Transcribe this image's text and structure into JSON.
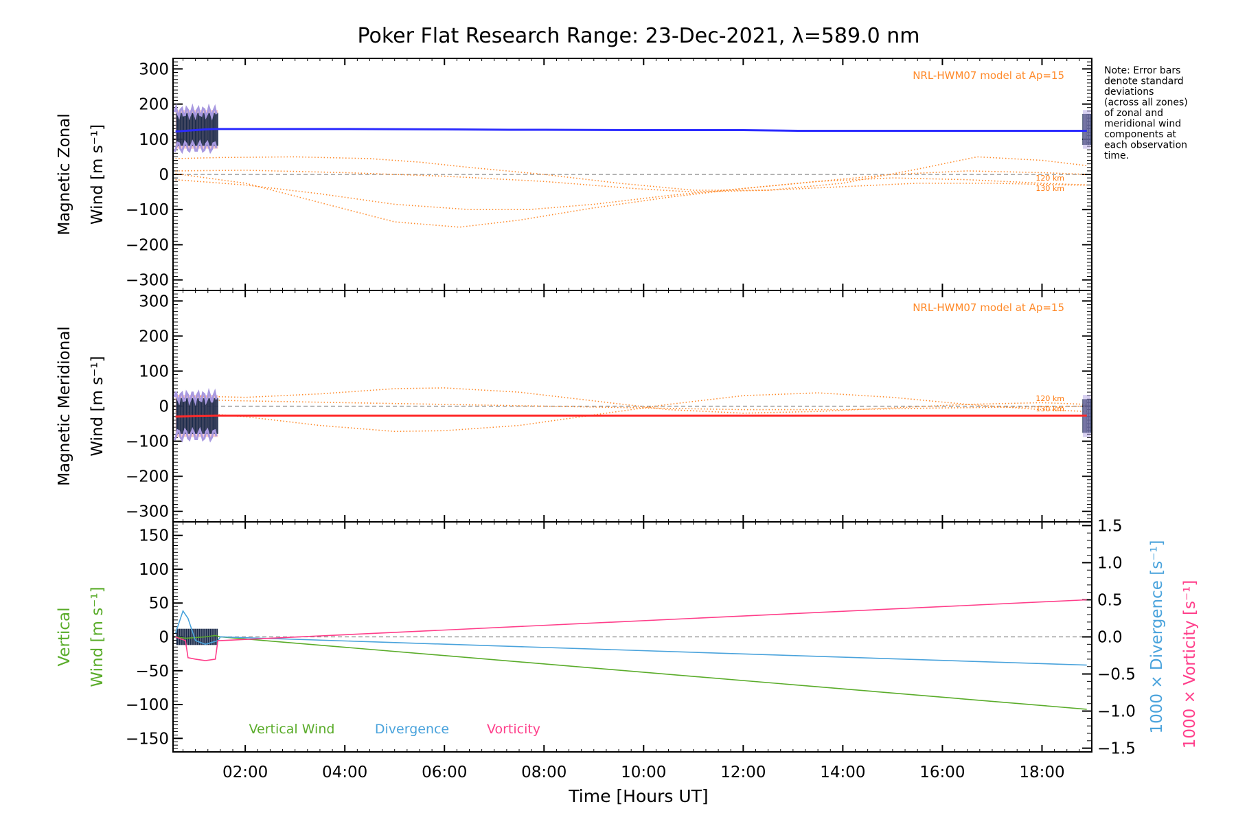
{
  "title": "Poker Flat Research Range: 23-Dec-2021, λ=589.0 nm",
  "note": [
    "Note: Error bars",
    "denote standard",
    "deviations",
    "(across all zones)",
    "of zonal and",
    "meridional wind",
    "components at",
    "each observation",
    "time."
  ],
  "x_label": "Time [Hours UT]",
  "colors": {
    "zonal": "#2b2bff",
    "meridional": "#ff2b2b",
    "model": "#ff8a2a",
    "vertical": "#5aac2a",
    "divergence": "#4aa3dc",
    "vorticity": "#ff3e8a",
    "zero_line": "#888888",
    "error_bar": "#1a2a4a",
    "zone_spread_zonal": "#f4a0a0",
    "zone_spread_lilac": "#a899e0"
  },
  "chart_data": [
    {
      "type": "line",
      "panel": "zonal",
      "ylabel_line1": "Magnetic Zonal",
      "ylabel_line2": "Wind [m s⁻¹]",
      "xlim": [
        0.55,
        19.0
      ],
      "ylim": [
        -330,
        330
      ],
      "x_ticks": [
        2,
        4,
        6,
        8,
        10,
        12,
        14,
        16,
        18
      ],
      "y_ticks": [
        -300,
        -200,
        -100,
        0,
        100,
        200,
        300
      ],
      "model_label": "NRL-HWM07 model at Ap=15",
      "model_levels": [
        "120 km",
        "130 km"
      ],
      "series": [
        {
          "x": [
            0.6,
            0.8,
            1.0,
            1.2,
            1.4,
            2.0,
            4.0,
            6.0,
            7.3,
            8.0,
            10.0,
            12.0,
            13.1,
            14.0,
            16.0,
            18.0,
            18.9
          ],
          "y": [
            122,
            124,
            126,
            128,
            129,
            129,
            129,
            128,
            127,
            127,
            126,
            126,
            124,
            124,
            124,
            124,
            124
          ]
        }
      ],
      "model_curves": [
        {
          "x": [
            0.6,
            1.5,
            3,
            4.5,
            5.5,
            6.5,
            8,
            9.5,
            11,
            12.5,
            14,
            15.5,
            16.7,
            18,
            18.9
          ],
          "y": [
            45,
            48,
            50,
            45,
            35,
            20,
            0,
            -25,
            -45,
            -45,
            -25,
            15,
            50,
            40,
            25
          ]
        },
        {
          "x": [
            0.6,
            2,
            3.5,
            5,
            6.3,
            7.5,
            9,
            10.5,
            12,
            13.5,
            15,
            16.5,
            18,
            18.9
          ],
          "y": [
            2,
            -25,
            -80,
            -135,
            -150,
            -130,
            -95,
            -65,
            -40,
            -20,
            0,
            10,
            5,
            0
          ]
        },
        {
          "x": [
            0.6,
            2,
            3.5,
            5,
            6.5,
            7.7,
            9,
            10.5,
            12,
            13.5,
            15,
            16.5,
            18,
            18.9
          ],
          "y": [
            -15,
            -30,
            -55,
            -85,
            -100,
            -100,
            -85,
            -60,
            -40,
            -20,
            -10,
            -15,
            -25,
            -30
          ]
        },
        {
          "x": [
            0.6,
            2,
            4,
            6,
            8,
            9.8,
            11,
            12.5,
            14,
            15.5,
            17,
            18.5,
            18.9
          ],
          "y": [
            10,
            12,
            5,
            -5,
            -20,
            -40,
            -50,
            -45,
            -35,
            -25,
            -25,
            -30,
            -30
          ]
        }
      ]
    },
    {
      "type": "line",
      "panel": "meridional",
      "ylabel_line1": "Magnetic Meridional",
      "ylabel_line2": "Wind [m s⁻¹]",
      "xlim": [
        0.55,
        19.0
      ],
      "ylim": [
        -330,
        330
      ],
      "x_ticks": [
        2,
        4,
        6,
        8,
        10,
        12,
        14,
        16,
        18
      ],
      "y_ticks": [
        -300,
        -200,
        -100,
        0,
        100,
        200,
        300
      ],
      "model_label": "NRL-HWM07 model at Ap=15",
      "model_levels": [
        "120 km",
        "130 km"
      ],
      "series": [
        {
          "x": [
            0.6,
            1.0,
            1.4,
            2.0,
            6.0,
            10.0,
            14.0,
            18.9
          ],
          "y": [
            -30,
            -28,
            -27,
            -27,
            -27,
            -27,
            -27,
            -27
          ]
        }
      ],
      "model_curves": [
        {
          "x": [
            0.6,
            2,
            3.5,
            5,
            6,
            7.5,
            9,
            10.5,
            12,
            13.5,
            15,
            16.5,
            18,
            18.9
          ],
          "y": [
            30,
            25,
            35,
            50,
            52,
            40,
            15,
            -10,
            -20,
            -15,
            -5,
            5,
            10,
            5
          ]
        },
        {
          "x": [
            0.6,
            2,
            3.5,
            5,
            6,
            7.5,
            9,
            10.5,
            12,
            13.5,
            15,
            16.5,
            18,
            18.9
          ],
          "y": [
            -15,
            -30,
            -55,
            -72,
            -70,
            -55,
            -25,
            5,
            30,
            38,
            25,
            5,
            -10,
            -15
          ]
        },
        {
          "x": [
            0.6,
            2,
            4,
            6,
            8,
            10,
            12,
            14,
            16,
            18,
            18.9
          ],
          "y": [
            20,
            15,
            10,
            5,
            0,
            -5,
            -10,
            -10,
            -5,
            -2,
            0
          ]
        }
      ]
    },
    {
      "type": "line",
      "panel": "vertical",
      "ylabel_line1": "Vertical",
      "ylabel_line2": "Wind [m s⁻¹]",
      "right_label_1": "1000 × Divergence [s⁻¹]",
      "right_label_2": "1000 × Vorticity [s⁻¹]",
      "xlim": [
        0.55,
        19.0
      ],
      "ylim": [
        -170,
        170
      ],
      "y2lim": [
        -1.55,
        1.55
      ],
      "x_ticks": [
        2,
        4,
        6,
        8,
        10,
        12,
        14,
        16,
        18
      ],
      "x_tick_labels": [
        "02:00",
        "04:00",
        "06:00",
        "08:00",
        "10:00",
        "12:00",
        "14:00",
        "16:00",
        "18:00"
      ],
      "y_ticks": [
        -150,
        -100,
        -50,
        0,
        50,
        100,
        150
      ],
      "y2_ticks": [
        -1.5,
        -1.0,
        -0.5,
        0.0,
        0.5,
        1.0,
        1.5
      ],
      "y2_tick_labels": [
        "−1.5",
        "−1.0",
        "−0.5",
        "0.0",
        "0.5",
        "1.0",
        "1.5"
      ],
      "legend": [
        "Vertical Wind",
        "Divergence",
        "Vorticity"
      ],
      "series": [
        {
          "name": "Vertical Wind",
          "axis": "left",
          "x": [
            0.6,
            0.8,
            1.0,
            1.2,
            1.4,
            1.5,
            18.9
          ],
          "y": [
            0,
            -2,
            -1,
            0,
            2,
            0,
            -107
          ]
        },
        {
          "name": "Divergence",
          "axis": "right",
          "x": [
            0.6,
            0.75,
            0.85,
            1.0,
            1.2,
            1.45,
            1.5,
            18.9
          ],
          "y": [
            0.05,
            0.35,
            0.25,
            -0.05,
            -0.1,
            -0.05,
            0.0,
            -0.38
          ]
        },
        {
          "name": "Vorticity",
          "axis": "right",
          "x": [
            0.6,
            0.8,
            0.85,
            1.0,
            1.2,
            1.4,
            1.45,
            1.5,
            18.9
          ],
          "y": [
            0.0,
            -0.05,
            -0.28,
            -0.3,
            -0.32,
            -0.3,
            -0.05,
            -0.05,
            0.5
          ]
        }
      ]
    }
  ]
}
